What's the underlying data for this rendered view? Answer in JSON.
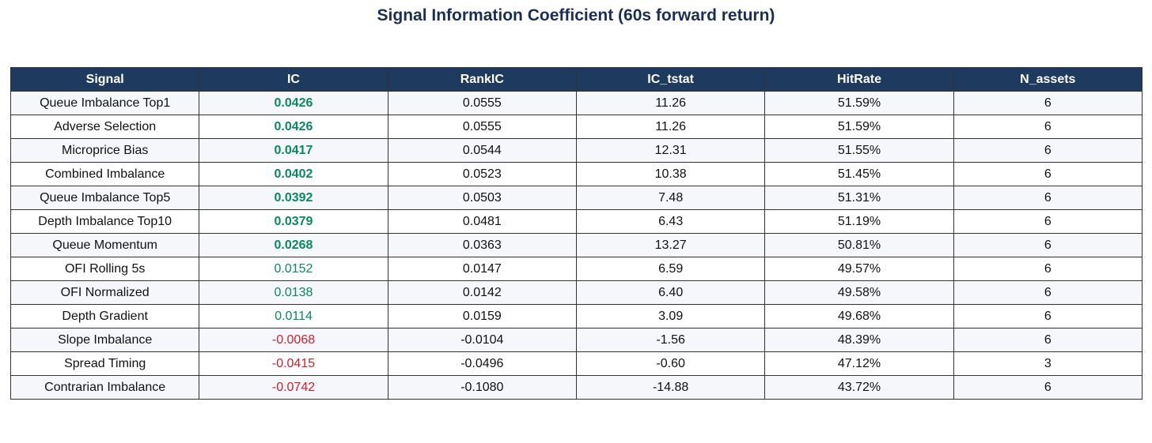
{
  "title": "Signal Information Coefficient (60s forward return)",
  "table": {
    "headers": [
      "Signal",
      "IC",
      "RankIC",
      "IC_tstat",
      "HitRate",
      "N_assets"
    ],
    "rows": [
      [
        "Queue Imbalance Top1",
        "0.0426",
        "0.0555",
        "11.26",
        "51.59%",
        "6"
      ],
      [
        "Adverse Selection",
        "0.0426",
        "0.0555",
        "11.26",
        "51.59%",
        "6"
      ],
      [
        "Microprice Bias",
        "0.0417",
        "0.0544",
        "12.31",
        "51.55%",
        "6"
      ],
      [
        "Combined Imbalance",
        "0.0402",
        "0.0523",
        "10.38",
        "51.45%",
        "6"
      ],
      [
        "Queue Imbalance Top5",
        "0.0392",
        "0.0503",
        "7.48",
        "51.31%",
        "6"
      ],
      [
        "Depth Imbalance Top10",
        "0.0379",
        "0.0481",
        "6.43",
        "51.19%",
        "6"
      ],
      [
        "Queue Momentum",
        "0.0268",
        "0.0363",
        "13.27",
        "50.81%",
        "6"
      ],
      [
        "OFI Rolling 5s",
        "0.0152",
        "0.0147",
        "6.59",
        "49.57%",
        "6"
      ],
      [
        "OFI Normalized",
        "0.0138",
        "0.0142",
        "6.40",
        "49.58%",
        "6"
      ],
      [
        "Depth Gradient",
        "0.0114",
        "0.0159",
        "3.09",
        "49.68%",
        "6"
      ],
      [
        "Slope Imbalance",
        "-0.0068",
        "-0.0104",
        "-1.56",
        "48.39%",
        "6"
      ],
      [
        "Spread Timing",
        "-0.0415",
        "-0.0496",
        "-0.60",
        "47.12%",
        "3"
      ],
      [
        "Contrarian Imbalance",
        "-0.0742",
        "-0.1080",
        "-14.88",
        "43.72%",
        "6"
      ]
    ],
    "ic_colors": [
      "#0a8a5c",
      "#0a8a5c",
      "#0a8a5c",
      "#0a8a5c",
      "#0a8a5c",
      "#0a8a5c",
      "#0a8a5c",
      "#0a8a5c",
      "#0a8a5c",
      "#0a8a5c",
      "#d0202a",
      "#d0202a",
      "#d0202a"
    ],
    "ic_bold": [
      true,
      true,
      true,
      true,
      true,
      true,
      true,
      false,
      false,
      false,
      false,
      false,
      false
    ]
  }
}
